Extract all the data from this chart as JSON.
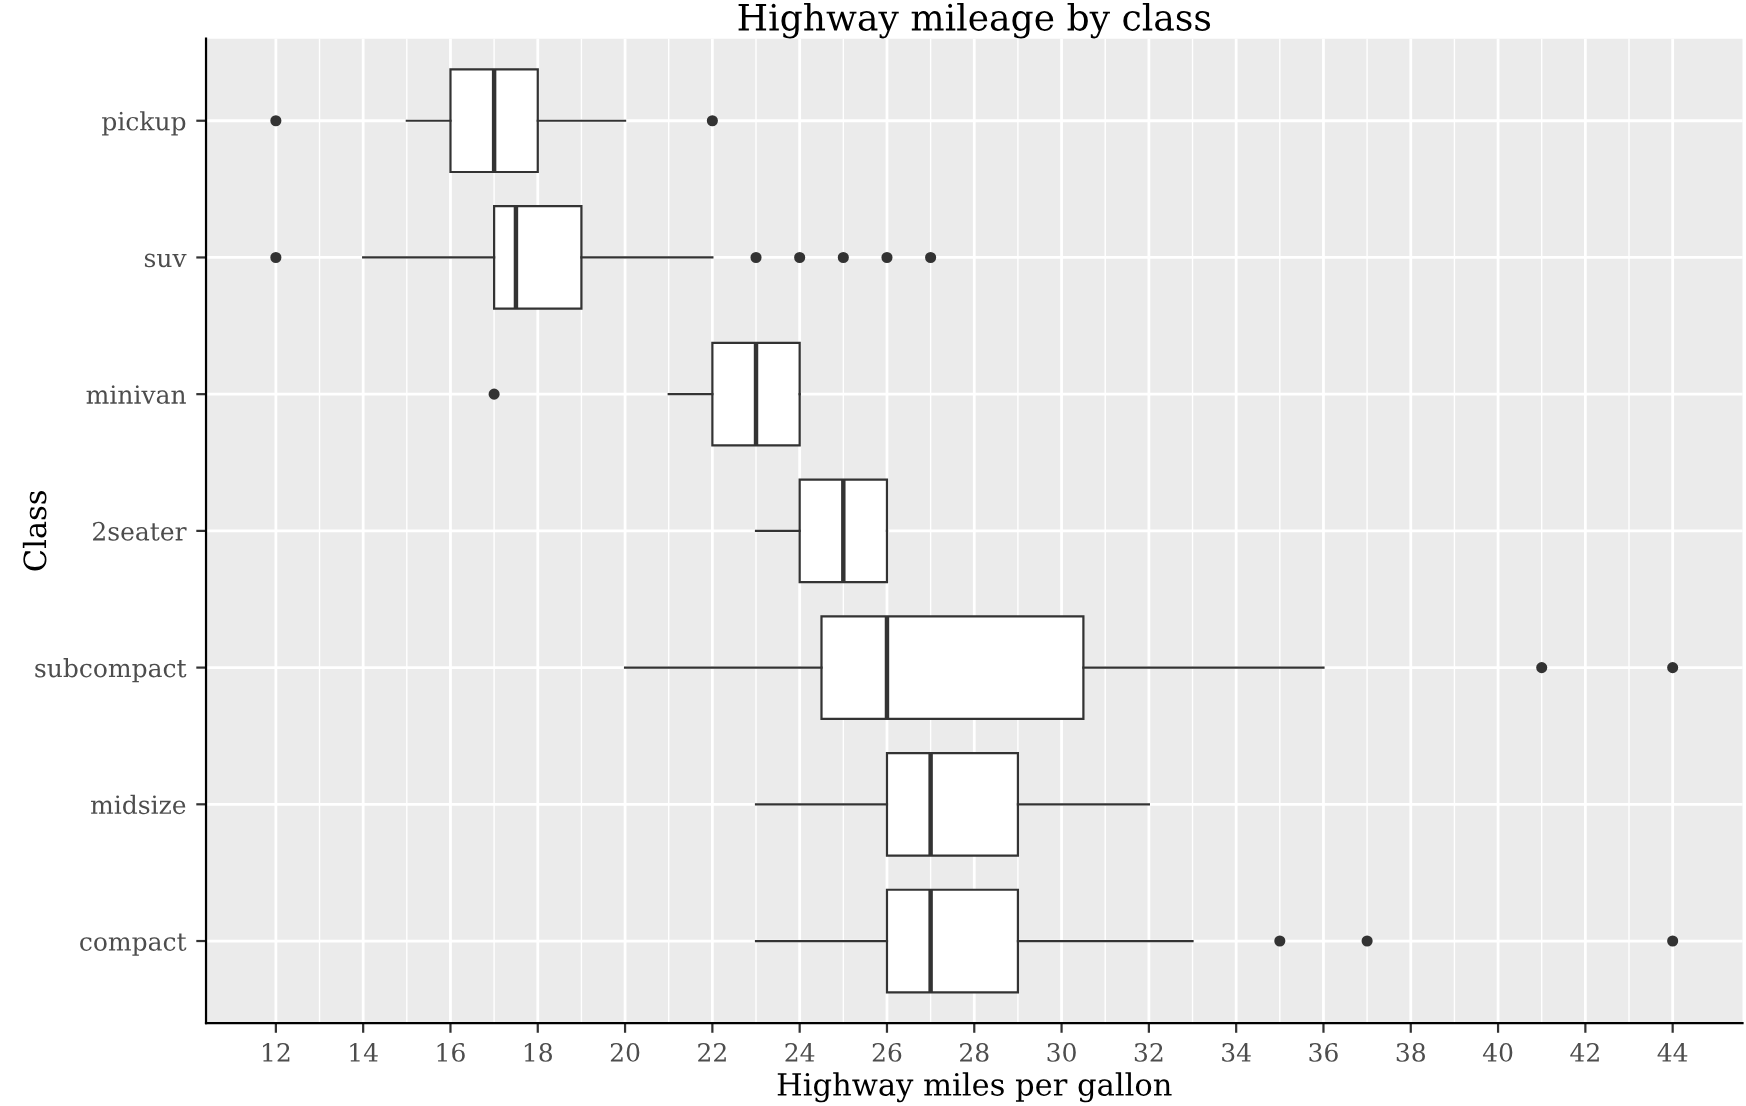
{
  "chart_data": {
    "type": "box",
    "title": "Highway mileage by class",
    "xlabel": "Highway miles per gallon",
    "ylabel": "Class",
    "orientation": "horizontal",
    "categories": [
      "pickup",
      "suv",
      "minivan",
      "2seater",
      "subcompact",
      "midsize",
      "compact"
    ],
    "boxes": [
      {
        "low": 15,
        "q1": 16,
        "median": 17,
        "q3": 18,
        "high": 20,
        "outliers": [
          12,
          22
        ]
      },
      {
        "low": 14,
        "q1": 17,
        "median": 17.5,
        "q3": 19,
        "high": 22,
        "outliers": [
          12,
          23,
          24,
          25,
          26,
          27
        ]
      },
      {
        "low": 21,
        "q1": 22,
        "median": 23,
        "q3": 24,
        "high": 24,
        "outliers": [
          17
        ]
      },
      {
        "low": 23,
        "q1": 24,
        "median": 25,
        "q3": 26,
        "high": 26
      },
      {
        "low": 20,
        "q1": 24.5,
        "median": 26,
        "q3": 30.5,
        "high": 36,
        "outliers": [
          41,
          44
        ]
      },
      {
        "low": 23,
        "q1": 26,
        "median": 27,
        "q3": 29,
        "high": 32
      },
      {
        "low": 23,
        "q1": 26,
        "median": 27,
        "q3": 29,
        "high": 33,
        "outliers": [
          35,
          37,
          44
        ]
      }
    ],
    "xlim": [
      10.4,
      45.6
    ],
    "xticks": [
      12,
      14,
      16,
      18,
      20,
      22,
      24,
      26,
      28,
      30,
      32,
      34,
      36,
      38,
      40,
      42,
      44
    ],
    "grid": true
  }
}
